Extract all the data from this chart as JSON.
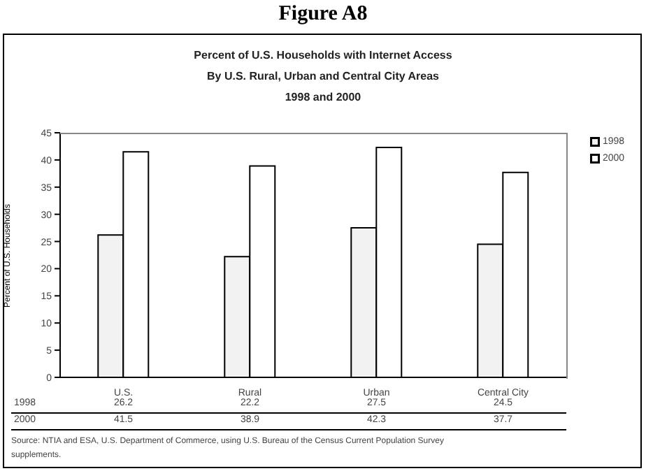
{
  "chart_data": {
    "type": "bar",
    "title": "Figure A8",
    "subtitle": "Percent of U.S. Households with Internet Access\nBy U.S. Rural, Urban and Central City Areas\n1998 and 2000",
    "ylabel": "Percent of U.S. Households",
    "categories": [
      "U.S.",
      "Rural",
      "Urban",
      "Central City"
    ],
    "series": [
      {
        "name": "1998",
        "color": "#f2f2f2",
        "values": [
          26.2,
          22.2,
          27.5,
          24.5
        ]
      },
      {
        "name": "2000",
        "color": "#ffffff",
        "values": [
          41.5,
          38.9,
          42.3,
          37.7
        ]
      }
    ],
    "ylim": [
      0,
      45
    ],
    "yticks": [
      0,
      5,
      10,
      15,
      20,
      25,
      30,
      35,
      40,
      45
    ],
    "grid": false,
    "legend": "top right",
    "data_labels": true,
    "annotations": [
      "Source:  NTIA and ESA, U.S. Department of Commerce, using U.S. Bureau of the Census Current Population Survey supplements."
    ]
  }
}
